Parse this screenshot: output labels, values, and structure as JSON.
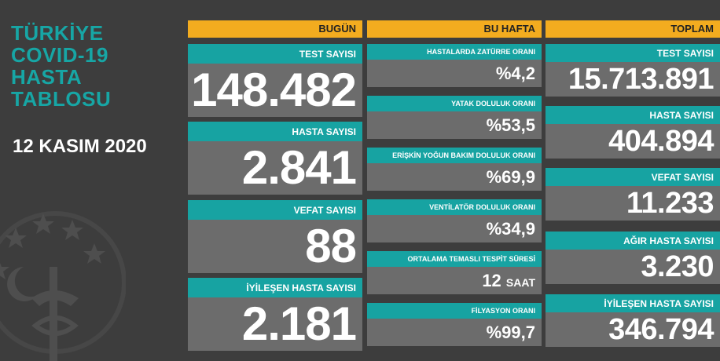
{
  "title_lines": [
    "TÜRKİYE",
    "COVID-19",
    "HASTA",
    "TABLOSU"
  ],
  "date": "12 KASIM 2020",
  "columns": {
    "today": "BUGÜN",
    "week": "BU HAFTA",
    "total": "TOPLAM"
  },
  "today": [
    {
      "label": "TEST SAYISI",
      "value": "148.482"
    },
    {
      "label": "HASTA SAYISI",
      "value": "2.841"
    },
    {
      "label": "VEFAT SAYISI",
      "value": "88"
    },
    {
      "label": "İYİLEŞEN HASTA SAYISI",
      "value": "2.181"
    }
  ],
  "week": [
    {
      "label": "HASTALARDA ZATÜRRE ORANI",
      "value": "%4,2"
    },
    {
      "label": "YATAK DOLULUK ORANI",
      "value": "%53,5"
    },
    {
      "label": "ERİŞKİN YOĞUN BAKIM DOLULUK ORANI",
      "value": "%69,9"
    },
    {
      "label": "VENTİLATÖR DOLULUK ORANI",
      "value": "%34,9"
    },
    {
      "label": "ORTALAMA TEMASLI TESPİT SÜRESİ",
      "value": "12",
      "unit": "SAAT"
    },
    {
      "label": "FİLYASYON ORANI",
      "value": "%99,7"
    }
  ],
  "total": [
    {
      "label": "TEST SAYISI",
      "value": "15.713.891"
    },
    {
      "label": "HASTA SAYISI",
      "value": "404.894"
    },
    {
      "label": "VEFAT SAYISI",
      "value": "11.233"
    },
    {
      "label": "AĞIR HASTA SAYISI",
      "value": "3.230"
    },
    {
      "label": "İYİLEŞEN HASTA SAYISI",
      "value": "346.794"
    }
  ],
  "colors": {
    "background": "#3d3d3d",
    "header": "#f3ac1f",
    "teal": "#17a3a2",
    "value_box": "#6c6c6c"
  },
  "icons": [
    "ministry-emblem-icon"
  ]
}
